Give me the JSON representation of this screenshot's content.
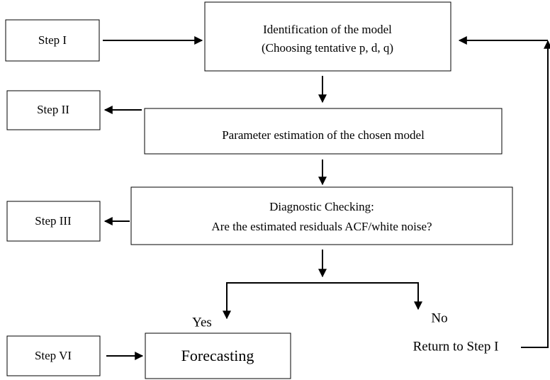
{
  "steps": [
    "Step I",
    "Step II",
    "Step III",
    "Step VI"
  ],
  "nodes": [
    {
      "lines": [
        "Identification of the model",
        "(Choosing tentative p, d, q)"
      ]
    },
    {
      "lines": [
        "Parameter estimation of the chosen model"
      ]
    },
    {
      "lines": [
        "Diagnostic Checking:",
        "Are the estimated residuals ACF/white noise?"
      ]
    },
    {
      "lines": [
        "Forecasting"
      ]
    }
  ],
  "branches": {
    "yes": "Yes",
    "no": "No",
    "return": "Return to Step I"
  }
}
